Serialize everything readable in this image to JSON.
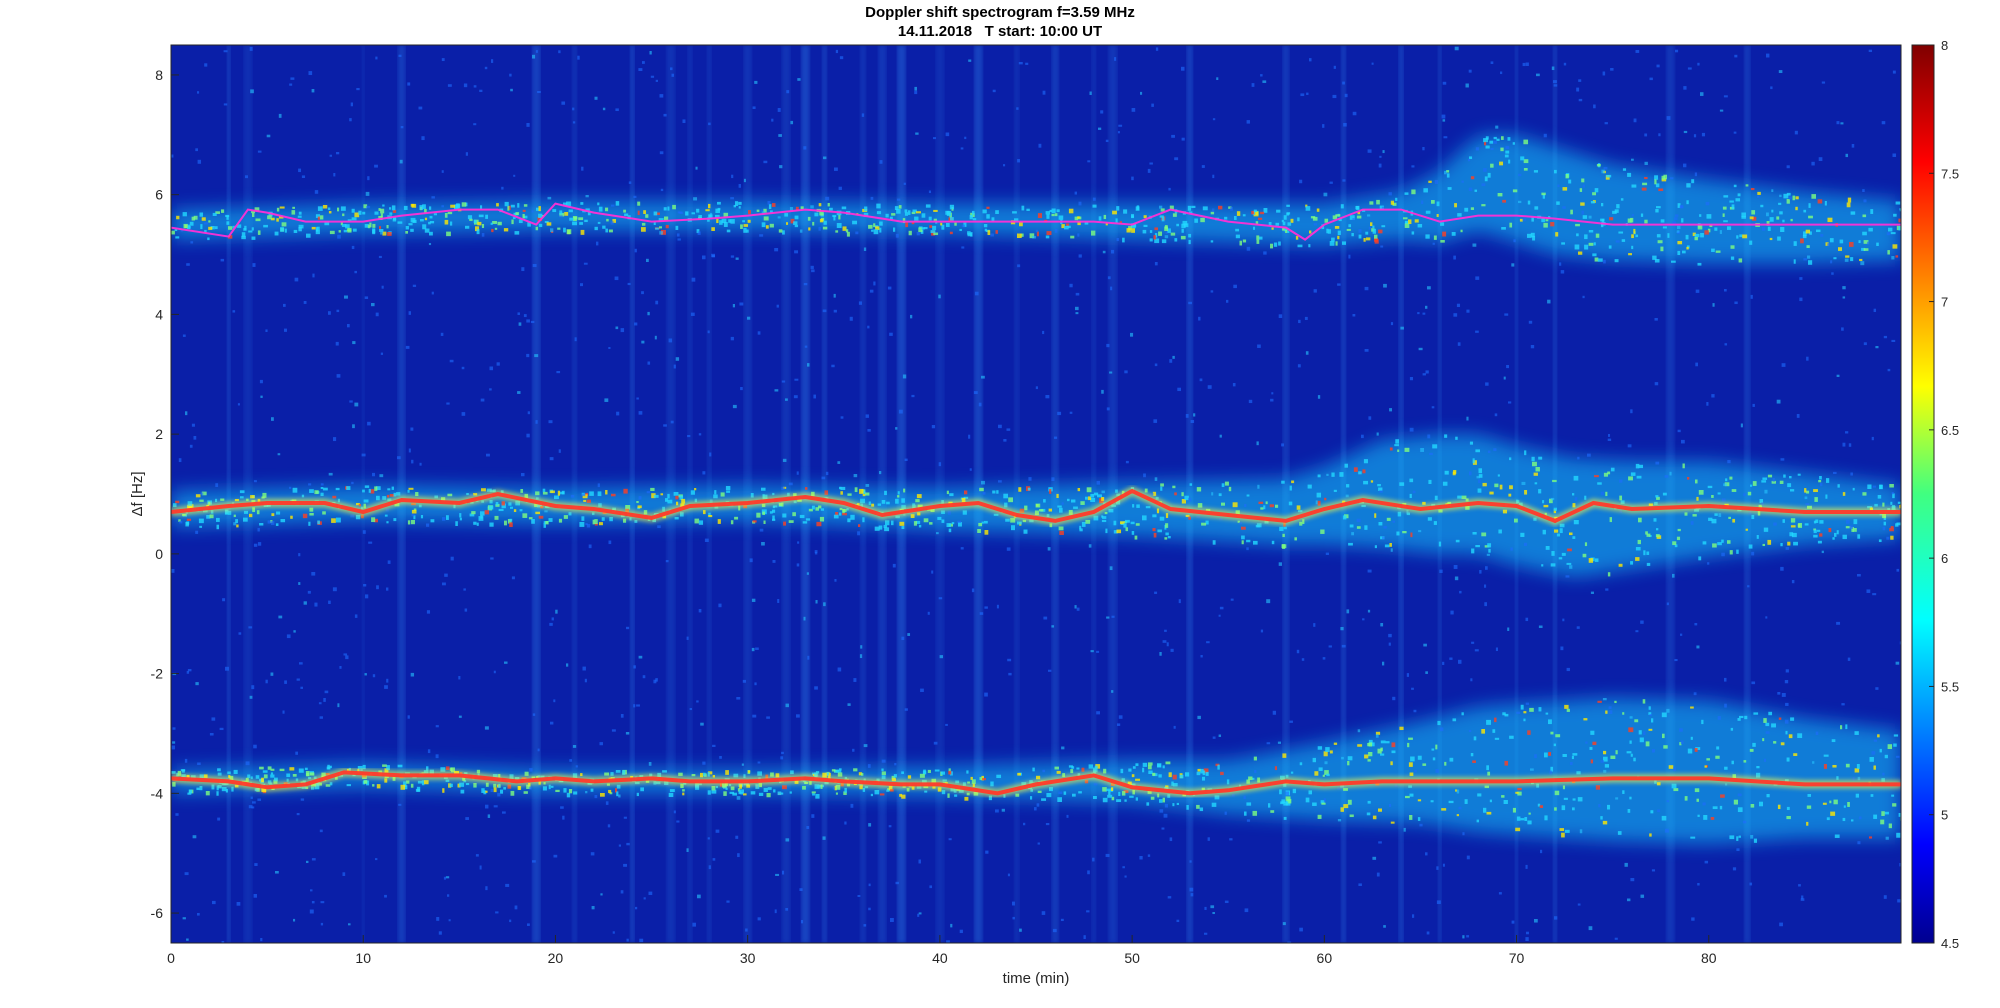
{
  "chart_data": {
    "type": "heatmap",
    "title": "Doppler shift spectrogram f=3.59 MHz",
    "subtitle": "14.11.2018   T start: 10:00 UT",
    "xlabel": "time (min)",
    "ylabel": "Δf [Hz]",
    "xlim": [
      0,
      90
    ],
    "ylim": [
      -6.5,
      8.5
    ],
    "xticks": [
      "0",
      "10",
      "20",
      "30",
      "40",
      "50",
      "60",
      "70",
      "80"
    ],
    "xtick_values": [
      0,
      10,
      20,
      30,
      40,
      50,
      60,
      70,
      80
    ],
    "yticks": [
      "8",
      "6",
      "4",
      "2",
      "0",
      "-2",
      "-4",
      "-6"
    ],
    "ytick_values": [
      8,
      6,
      4,
      2,
      0,
      -2,
      -4,
      -6
    ],
    "colorbar": {
      "colormap": "jet",
      "range": [
        4.5,
        8
      ],
      "ticks": [
        "8",
        "7.5",
        "7",
        "6.5",
        "6",
        "5.5",
        "5",
        "4.5"
      ],
      "tick_values": [
        8,
        7.5,
        7,
        6.5,
        6,
        5.5,
        5,
        4.5
      ]
    },
    "grid": false,
    "background_color": "#0a1fa8",
    "traces": [
      {
        "color": "#ff2fd6",
        "x": [
          0,
          3,
          4,
          5,
          7,
          10,
          12,
          15,
          17,
          19,
          20,
          22,
          25,
          28,
          30,
          33,
          35,
          38,
          40,
          43,
          45,
          48,
          50,
          52,
          55,
          58,
          59,
          60,
          62,
          64,
          66,
          68,
          70,
          72,
          75,
          80,
          85,
          90
        ],
        "y": [
          5.45,
          5.3,
          5.75,
          5.7,
          5.55,
          5.55,
          5.65,
          5.75,
          5.75,
          5.5,
          5.85,
          5.7,
          5.55,
          5.6,
          5.65,
          5.75,
          5.7,
          5.55,
          5.55,
          5.55,
          5.55,
          5.55,
          5.5,
          5.75,
          5.55,
          5.45,
          5.25,
          5.5,
          5.75,
          5.75,
          5.55,
          5.65,
          5.65,
          5.6,
          5.5,
          5.5,
          5.5,
          5.5
        ]
      },
      {
        "color": "#ff3a2a",
        "x": [
          0,
          3,
          5,
          8,
          10,
          12,
          15,
          17,
          20,
          22,
          25,
          27,
          30,
          33,
          35,
          37,
          40,
          42,
          44,
          46,
          48,
          50,
          52,
          55,
          58,
          60,
          62,
          65,
          68,
          70,
          72,
          74,
          76,
          80,
          85,
          90
        ],
        "y": [
          0.7,
          0.8,
          0.85,
          0.85,
          0.7,
          0.9,
          0.85,
          1.0,
          0.8,
          0.75,
          0.6,
          0.8,
          0.85,
          0.95,
          0.85,
          0.65,
          0.8,
          0.85,
          0.65,
          0.55,
          0.7,
          1.05,
          0.75,
          0.65,
          0.55,
          0.75,
          0.9,
          0.75,
          0.85,
          0.8,
          0.55,
          0.85,
          0.75,
          0.8,
          0.7,
          0.7
        ]
      },
      {
        "color": "#ff3a2a",
        "x": [
          0,
          3,
          5,
          7,
          9,
          12,
          15,
          18,
          20,
          22,
          25,
          27,
          30,
          33,
          35,
          38,
          40,
          43,
          45,
          48,
          50,
          53,
          55,
          58,
          60,
          63,
          66,
          70,
          75,
          80,
          85,
          90
        ],
        "y": [
          -3.75,
          -3.8,
          -3.9,
          -3.85,
          -3.65,
          -3.7,
          -3.7,
          -3.8,
          -3.75,
          -3.8,
          -3.75,
          -3.8,
          -3.8,
          -3.75,
          -3.8,
          -3.85,
          -3.85,
          -4.0,
          -3.85,
          -3.7,
          -3.9,
          -4.0,
          -3.95,
          -3.8,
          -3.85,
          -3.8,
          -3.8,
          -3.8,
          -3.75,
          -3.75,
          -3.85,
          -3.85
        ]
      }
    ],
    "bands": [
      {
        "x": [
          0,
          10,
          20,
          30,
          40,
          50,
          60,
          64,
          66,
          68,
          70,
          72,
          75,
          80,
          85,
          90
        ],
        "center": [
          5.5,
          5.6,
          5.65,
          5.65,
          5.6,
          5.55,
          5.5,
          5.65,
          5.8,
          6.2,
          6.1,
          5.9,
          5.7,
          5.55,
          5.45,
          5.4
        ],
        "halfwidth": [
          0.25,
          0.25,
          0.25,
          0.25,
          0.25,
          0.3,
          0.35,
          0.4,
          0.6,
          0.8,
          0.9,
          0.9,
          0.8,
          0.7,
          0.6,
          0.5
        ]
      },
      {
        "x": [
          0,
          10,
          20,
          30,
          40,
          50,
          58,
          60,
          63,
          66,
          68,
          70,
          73,
          76,
          80,
          85,
          90
        ],
        "center": [
          0.75,
          0.85,
          0.8,
          0.85,
          0.75,
          0.75,
          0.7,
          0.8,
          1.0,
          1.0,
          1.0,
          0.8,
          0.6,
          0.65,
          0.75,
          0.75,
          0.7
        ],
        "halfwidth": [
          0.3,
          0.3,
          0.3,
          0.3,
          0.35,
          0.45,
          0.55,
          0.65,
          0.9,
          1.0,
          1.0,
          1.0,
          1.0,
          0.9,
          0.8,
          0.6,
          0.45
        ]
      },
      {
        "x": [
          0,
          10,
          20,
          30,
          40,
          50,
          55,
          60,
          65,
          68,
          70,
          75,
          80,
          85,
          90
        ],
        "center": [
          -3.8,
          -3.7,
          -3.8,
          -3.8,
          -3.8,
          -3.8,
          -3.9,
          -3.8,
          -3.65,
          -3.6,
          -3.6,
          -3.6,
          -3.65,
          -3.75,
          -3.85
        ],
        "halfwidth": [
          0.2,
          0.2,
          0.2,
          0.2,
          0.25,
          0.35,
          0.45,
          0.65,
          0.85,
          1.05,
          1.1,
          1.2,
          1.2,
          1.0,
          0.9
        ]
      }
    ],
    "vertical_streaks": [
      3,
      4,
      10,
      12,
      19,
      21,
      24,
      26,
      27,
      28,
      30,
      32,
      33,
      34,
      36,
      37,
      38,
      40,
      42,
      44,
      46,
      48,
      49,
      53,
      58,
      61,
      64,
      66,
      70,
      72,
      78,
      82
    ]
  }
}
